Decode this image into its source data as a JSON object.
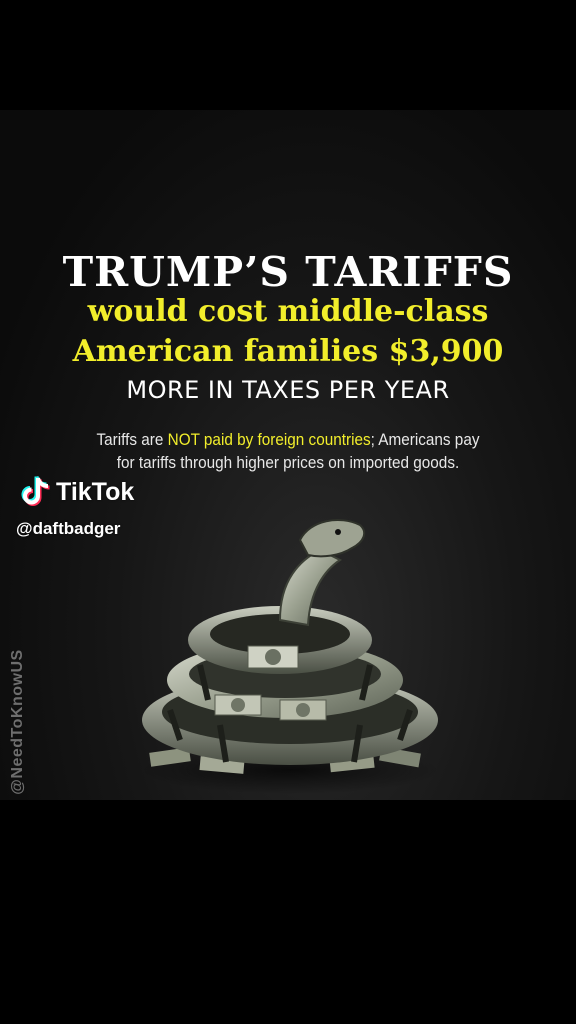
{
  "headline": {
    "line1": "TRUMP’S TARIFFS",
    "line2": "would cost middle-class",
    "line3": "American families $3,900",
    "line4": "MORE IN TAXES PER YEAR"
  },
  "note": {
    "part1": "Tariffs are ",
    "part2": "NOT paid by foreign countries",
    "part3": "; Americans pay",
    "part4": "for tariffs through higher prices on imported goods."
  },
  "watermark": "@NeedToKnowUS",
  "overlay": {
    "app_name": "TikTok",
    "handle": "@daftbadger"
  },
  "colors": {
    "accent_yellow": "#f2ee2b",
    "text_white": "#ffffff",
    "tiktok_cyan": "#25f4ee",
    "tiktok_red": "#fe2c55"
  },
  "icons": {
    "tiktok_logo": "tiktok-note-icon",
    "illustration": "money-snake-illustration"
  }
}
